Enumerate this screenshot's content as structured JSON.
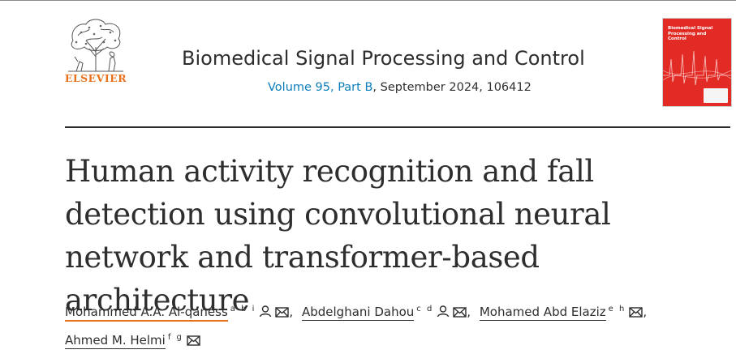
{
  "header": {
    "publisher": "ELSEVIER",
    "journal_title": "Biomedical Signal Processing and Control",
    "volume_link": "Volume 95, Part B",
    "issue_info": ", September 2024, 106412",
    "cover_title": "Biomedical Signal Processing and Control"
  },
  "article": {
    "title": "Human activity recognition and fall detection using convolutional neural network and transformer-based architecture"
  },
  "authors": [
    {
      "name": "Mohammed A.A. Al-qaness",
      "affiliations": "a b i",
      "icons": [
        "person-icon",
        "mail-icon"
      ]
    },
    {
      "name": "Abdelghani Dahou",
      "affiliations": "c d",
      "icons": [
        "person-icon",
        "mail-icon"
      ]
    },
    {
      "name": "Mohamed Abd Elaziz",
      "affiliations": "e h",
      "icons": [
        "mail-icon"
      ]
    },
    {
      "name": "Ahmed M. Helmi",
      "affiliations": "f g",
      "icons": [
        "mail-icon"
      ]
    }
  ],
  "colors": {
    "accent": "#e9711c",
    "link": "#0c7dbb",
    "cover": "#e22b24",
    "text": "#2e2e2e"
  }
}
